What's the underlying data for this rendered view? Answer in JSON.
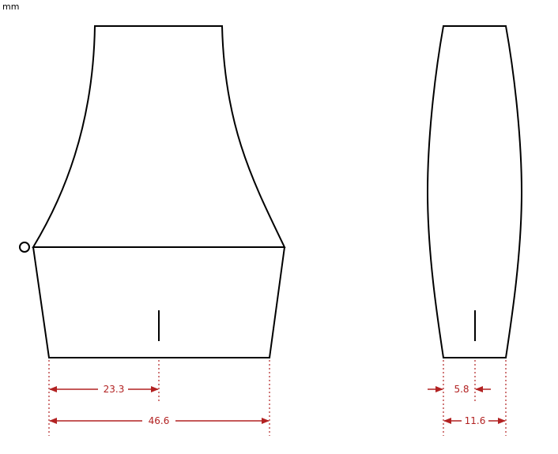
{
  "units_label": "mm",
  "front_view": {
    "width_half": "23.3",
    "width_full": "46.6"
  },
  "side_view": {
    "thickness_half": "5.8",
    "thickness_full": "11.6"
  },
  "colors": {
    "outline": "#000000",
    "dimension": "#b22222"
  }
}
